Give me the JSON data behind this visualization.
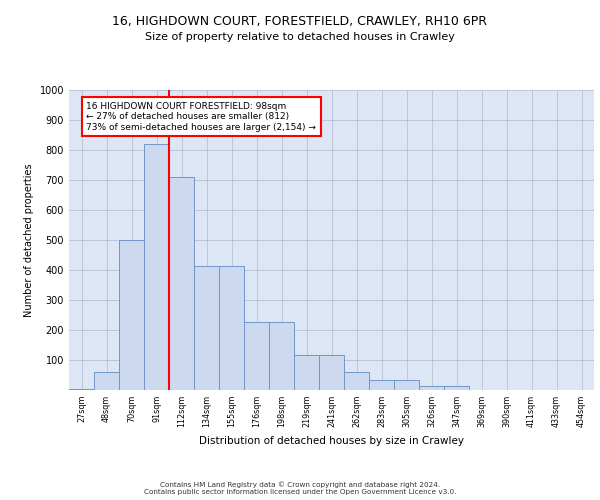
{
  "title_line1": "16, HIGHDOWN COURT, FORESTFIELD, CRAWLEY, RH10 6PR",
  "title_line2": "Size of property relative to detached houses in Crawley",
  "xlabel": "Distribution of detached houses by size in Crawley",
  "ylabel": "Number of detached properties",
  "footer_line1": "Contains HM Land Registry data © Crown copyright and database right 2024.",
  "footer_line2": "Contains public sector information licensed under the Open Government Licence v3.0.",
  "bin_labels": [
    "27sqm",
    "48sqm",
    "70sqm",
    "91sqm",
    "112sqm",
    "134sqm",
    "155sqm",
    "176sqm",
    "198sqm",
    "219sqm",
    "241sqm",
    "262sqm",
    "283sqm",
    "305sqm",
    "326sqm",
    "347sqm",
    "369sqm",
    "390sqm",
    "411sqm",
    "433sqm",
    "454sqm"
  ],
  "bar_heights": [
    5,
    60,
    500,
    820,
    710,
    415,
    415,
    228,
    228,
    118,
    118,
    60,
    35,
    35,
    15,
    15,
    0,
    0,
    0,
    0,
    0
  ],
  "bar_color": "#ccd9ee",
  "bar_edge_color": "#7096c8",
  "vline_color": "red",
  "vline_x": 3.5,
  "annotation_text": "16 HIGHDOWN COURT FORESTFIELD: 98sqm\n← 27% of detached houses are smaller (812)\n73% of semi-detached houses are larger (2,154) →",
  "annotation_box_color": "white",
  "annotation_box_edge_color": "red",
  "ylim": [
    0,
    1000
  ],
  "yticks": [
    0,
    100,
    200,
    300,
    400,
    500,
    600,
    700,
    800,
    900,
    1000
  ],
  "grid_color": "#b0b8d0",
  "background_color": "#dce6f5"
}
